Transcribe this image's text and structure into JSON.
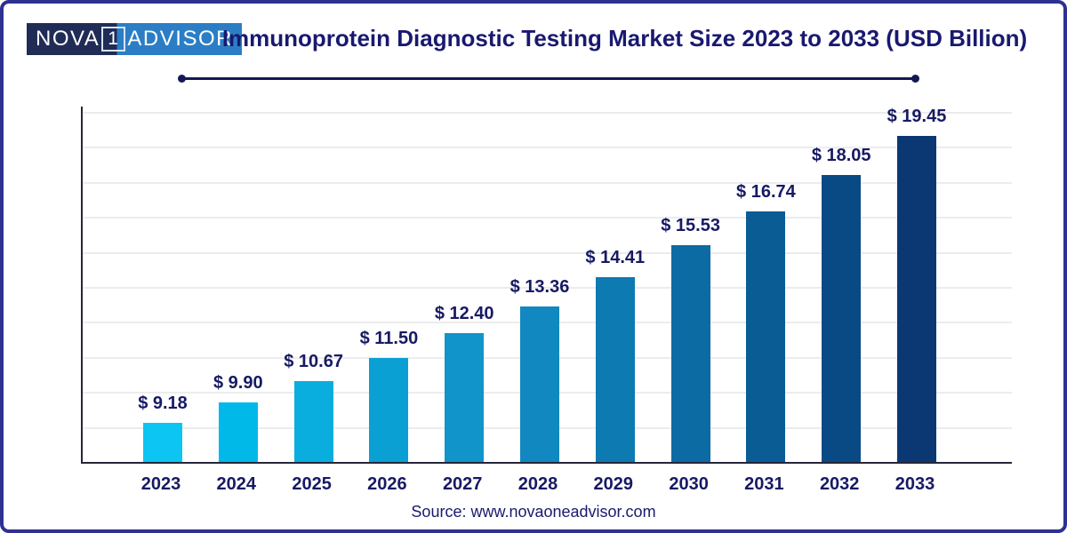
{
  "header": {
    "logo": {
      "text_nova": "NOVA",
      "text_one": "1",
      "text_advisor": "ADVISOR",
      "navy": "#202c56",
      "blue": "#2b7ec5"
    },
    "title": "Immunoprotein Diagnostic Testing Market Size 2023 to 2033 (USD Billion)"
  },
  "chart_data": {
    "type": "bar",
    "title": "Immunoprotein Diagnostic Testing Market Size 2023 to 2033 (USD Billion)",
    "categories": [
      "2023",
      "2024",
      "2025",
      "2026",
      "2027",
      "2028",
      "2029",
      "2030",
      "2031",
      "2032",
      "2033"
    ],
    "values": [
      9.18,
      9.9,
      10.67,
      11.5,
      12.4,
      13.36,
      14.41,
      15.53,
      16.74,
      18.05,
      19.45
    ],
    "value_labels": [
      "$ 9.18",
      "$ 9.90",
      "$ 10.67",
      "$ 11.50",
      "$ 12.40",
      "$ 13.36",
      "$ 14.41",
      "$ 15.53",
      "$ 16.74",
      "$ 18.05",
      "$ 19.45"
    ],
    "bar_colors": [
      "#0cc5f2",
      "#00b9e8",
      "#0aaede",
      "#0aa0d4",
      "#1094c9",
      "#1188bf",
      "#0d7ab1",
      "#0c6ba3",
      "#0a5c95",
      "#094a85",
      "#0b3873"
    ],
    "xlabel": "",
    "ylabel": "",
    "ylim": [
      7.78,
      20.5
    ],
    "grid": true,
    "gridline_count": 10,
    "legend": false
  },
  "footer": {
    "source": "Source: www.novaoneadvisor.com"
  },
  "colors": {
    "text_navy": "#171a64",
    "frame_border": "#2e3192",
    "axis": "#26263a",
    "gridline": "#ececec",
    "divider": "#141852",
    "title_color": "#191970"
  }
}
